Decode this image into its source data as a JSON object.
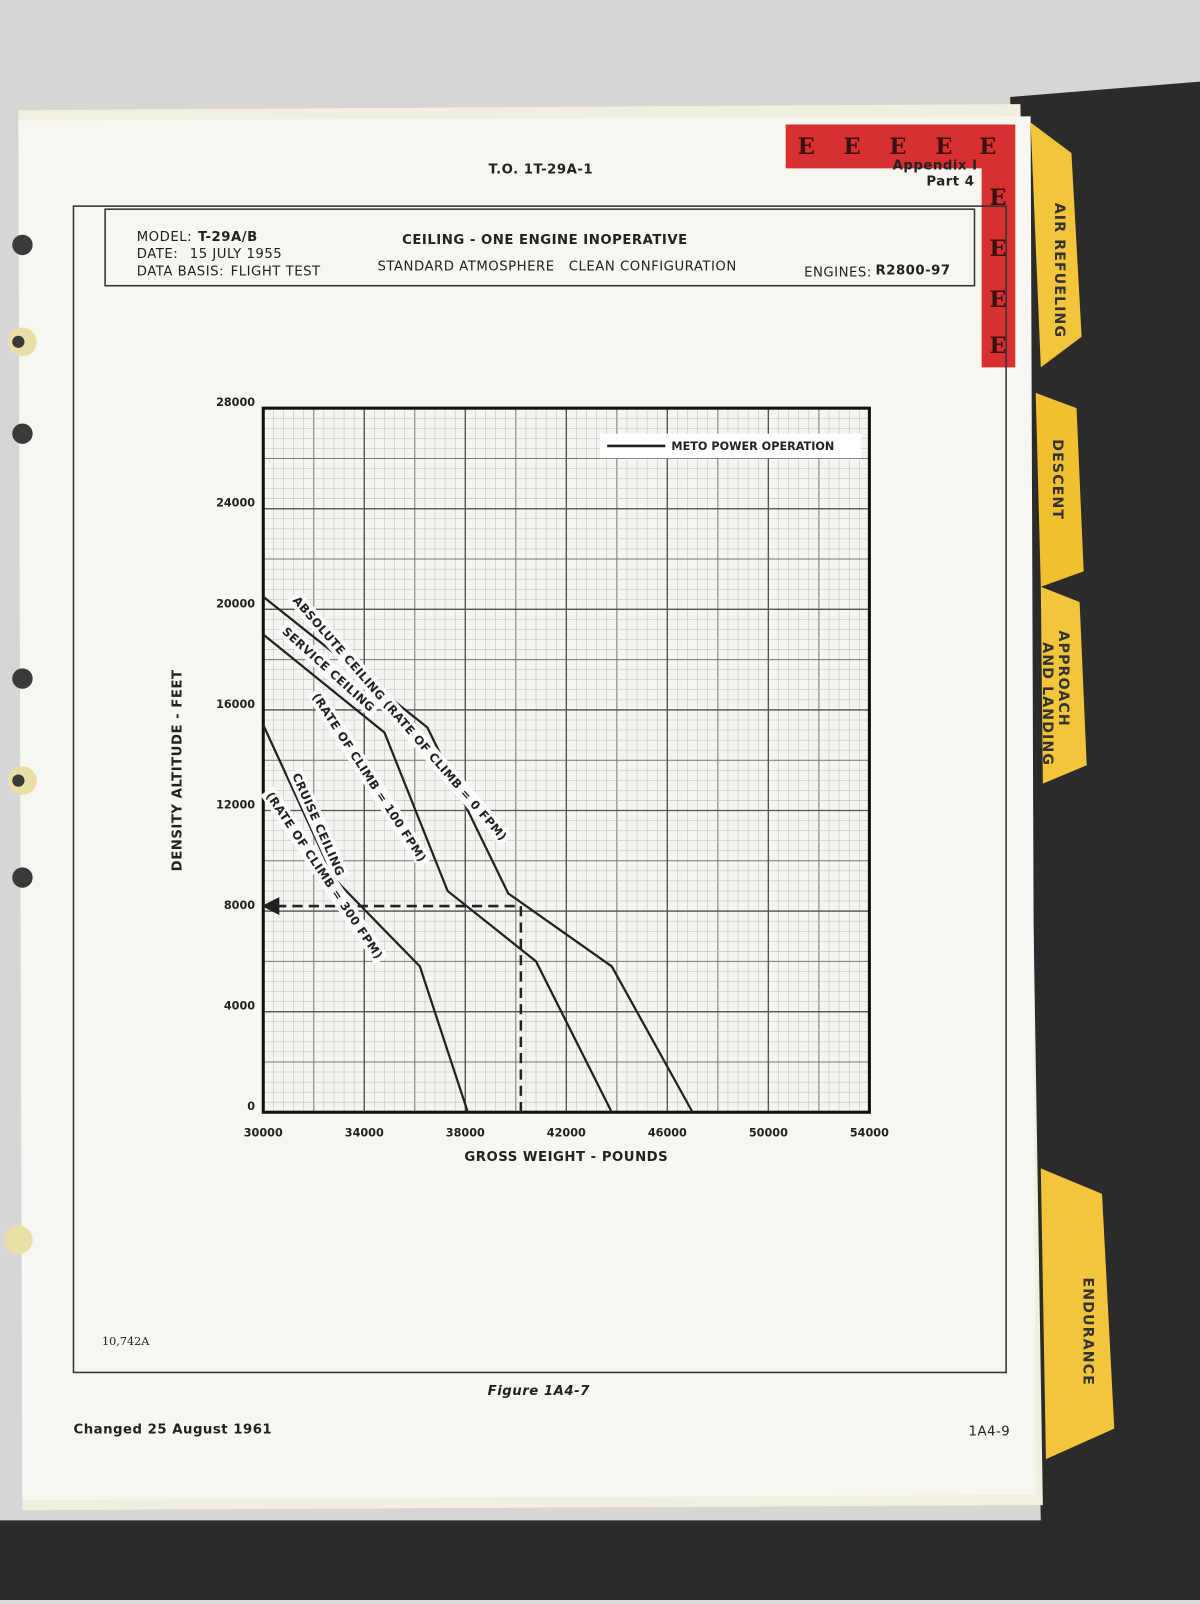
{
  "page": {
    "doc_number": "T.O. 1T-29A-1",
    "appendix": "Appendix I",
    "part": "Part 4",
    "model_label": "MODEL:",
    "model": "T-29A/B",
    "date_label": "DATE:",
    "date": "15 JULY 1955",
    "basis_label": "DATA BASIS:",
    "basis": "FLIGHT TEST",
    "engines_label": "ENGINES:",
    "engines": "R2800-97",
    "drawing_number": "10,742A",
    "figure": "Figure 1A4-7",
    "changed": "Changed 25 August 1961",
    "page_number": "1A4-9",
    "red_tab_letter": "E",
    "tabs": [
      "AIR REFUELING",
      "DESCENT",
      "APPROACH",
      "AND LANDING",
      "ENDURANCE"
    ]
  },
  "chart_data": {
    "type": "line",
    "title": "CEILING - ONE ENGINE INOPERATIVE",
    "subtitle": "STANDARD ATMOSPHERE   CLEAN CONFIGURATION",
    "x_label": "GROSS WEIGHT - POUNDS",
    "y_label": "DENSITY ALTITUDE - FEET",
    "legend": "METO POWER OPERATION",
    "xlim": [
      30000,
      54000
    ],
    "xticks": [
      30000,
      34000,
      38000,
      42000,
      46000,
      50000,
      54000
    ],
    "ylim": [
      0,
      28000
    ],
    "yticks": [
      0,
      4000,
      8000,
      12000,
      16000,
      20000,
      24000,
      28000
    ],
    "grid": true,
    "color": "#222222",
    "series": [
      {
        "label": [
          "ABSOLUTE CEILING (RATE OF CLIMB = 0 FPM)"
        ],
        "x": [
          30000,
          36500,
          39700,
          43800,
          47000
        ],
        "values": [
          20500,
          15300,
          8700,
          5800,
          0
        ]
      },
      {
        "label": [
          "SERVICE CEILING",
          "(RATE OF CLIMB = 100 FPM)"
        ],
        "x": [
          30000,
          34800,
          37300,
          40800,
          43800
        ],
        "values": [
          19000,
          15100,
          8800,
          6000,
          0
        ]
      },
      {
        "label": [
          "CRUISE CEILING",
          "(RATE OF CLIMB = 300 FPM)"
        ],
        "x": [
          30000,
          32800,
          36200,
          38100
        ],
        "values": [
          15400,
          9300,
          5800,
          0
        ]
      }
    ],
    "guide": {
      "x": [
        40200,
        40200,
        30000
      ],
      "values": [
        0,
        8200,
        8200
      ]
    }
  }
}
